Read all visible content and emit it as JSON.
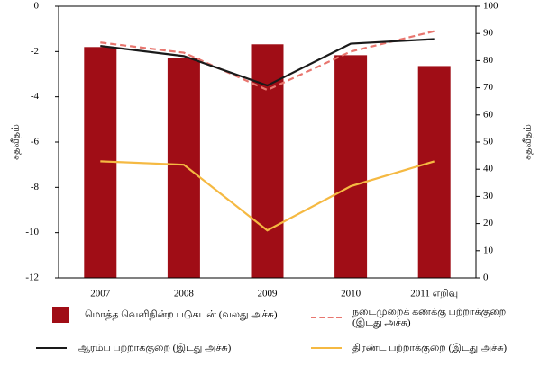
{
  "chart_data": {
    "type": "bar",
    "categories": [
      "2007",
      "2008",
      "2009",
      "2010",
      "2011 எறிவு"
    ],
    "ylabel": "சதவீதம்",
    "y2label": "சதவீதம்",
    "ylim": [
      -12,
      0
    ],
    "yticks": [
      0,
      -2,
      -4,
      -6,
      -8,
      -10,
      -12
    ],
    "y2lim": [
      0,
      100
    ],
    "y2ticks": [
      0,
      10,
      20,
      30,
      40,
      50,
      60,
      70,
      80,
      90,
      100
    ],
    "series": [
      {
        "name": "மொத்த வெளிநின்ற படுகடன் (வலது அச்சு)",
        "type": "bar",
        "axis": "y2",
        "color": "#a00d16",
        "values": [
          85,
          81,
          86,
          82,
          78
        ]
      },
      {
        "name": "நடைமுறைக் கணக்கு பற்றாக்குறை (இடது அச்சு)",
        "type": "line",
        "dash": true,
        "color": "#e8766f",
        "values": [
          -1.6,
          -2.05,
          -3.7,
          -2.0,
          -1.1
        ]
      },
      {
        "name": "ஆரம்ப பற்றாக்குறை (இடது அச்சு)",
        "type": "line",
        "color": "#1a1a1a",
        "values": [
          -1.75,
          -2.2,
          -3.5,
          -1.65,
          -1.45
        ]
      },
      {
        "name": "திரண்ட பற்றாக்குறை (இடது அச்சு)",
        "type": "line",
        "color": "#f5b942",
        "values": [
          -6.85,
          -7.0,
          -9.9,
          -7.95,
          -6.85
        ]
      }
    ]
  }
}
